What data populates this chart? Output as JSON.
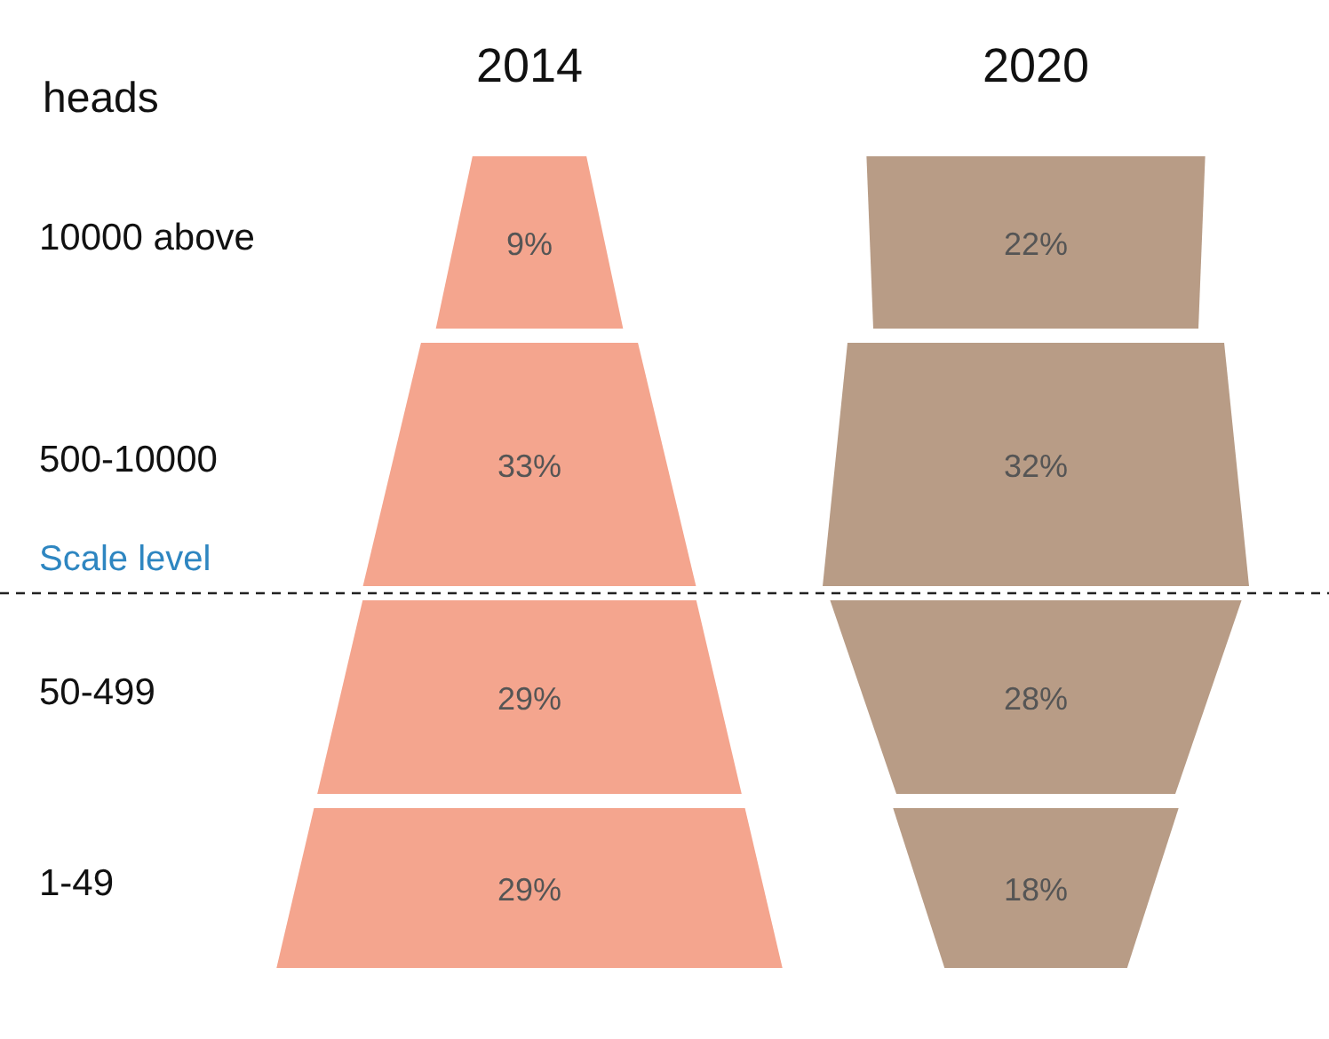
{
  "chart_data": {
    "type": "other",
    "ylabel": "heads",
    "categories": [
      "10000 above",
      "500-10000",
      "50-499",
      "1-49"
    ],
    "series": [
      {
        "name": "2014",
        "color": "#f4a58e",
        "values": [
          9,
          33,
          29,
          29
        ],
        "value_labels": [
          "9%",
          "33%",
          "29%",
          "29%"
        ]
      },
      {
        "name": "2020",
        "color": "#b89c86",
        "values": [
          22,
          32,
          28,
          18
        ],
        "value_labels": [
          "22%",
          "32%",
          "28%",
          "18%"
        ]
      }
    ],
    "annotations": [
      {
        "text": "Scale level",
        "y": "500-10000"
      }
    ]
  }
}
